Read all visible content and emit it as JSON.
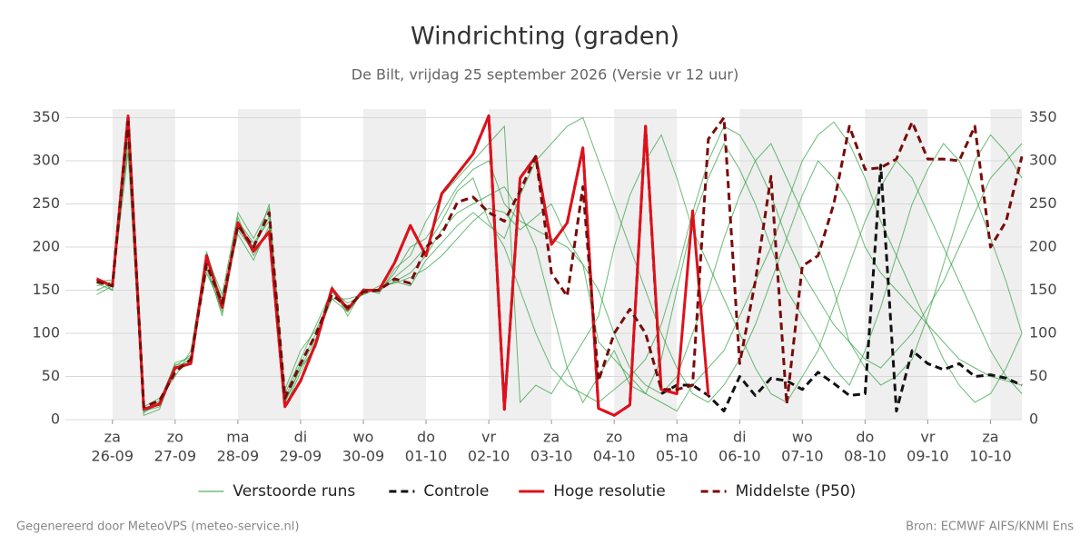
{
  "chart_data": {
    "type": "line",
    "title": "Windrichting (graden)",
    "subtitle": "De Bilt, vrijdag 25 september 2026 (Versie vr 12 uur)",
    "footer_left": "Gegenereerd door MeteoVPS (meteo-service.nl)",
    "footer_right": "Bron: ECMWF AIFS/KNMI Ens",
    "xlim": [
      -0.75,
      14.5
    ],
    "xticks": [
      {
        "value": 0,
        "label": [
          "za",
          "26-09"
        ]
      },
      {
        "value": 1,
        "label": [
          "zo",
          "27-09"
        ]
      },
      {
        "value": 2,
        "label": [
          "ma",
          "28-09"
        ]
      },
      {
        "value": 3,
        "label": [
          "di",
          "29-09"
        ]
      },
      {
        "value": 4,
        "label": [
          "wo",
          "30-09"
        ]
      },
      {
        "value": 5,
        "label": [
          "do",
          "01-10"
        ]
      },
      {
        "value": 6,
        "label": [
          "vr",
          "02-10"
        ]
      },
      {
        "value": 7,
        "label": [
          "za",
          "03-10"
        ]
      },
      {
        "value": 8,
        "label": [
          "zo",
          "04-10"
        ]
      },
      {
        "value": 9,
        "label": [
          "ma",
          "05-10"
        ]
      },
      {
        "value": 10,
        "label": [
          "di",
          "06-10"
        ]
      },
      {
        "value": 11,
        "label": [
          "wo",
          "07-10"
        ]
      },
      {
        "value": 12,
        "label": [
          "do",
          "08-10"
        ]
      },
      {
        "value": 13,
        "label": [
          "vr",
          "09-10"
        ]
      },
      {
        "value": 14,
        "label": [
          "za",
          "10-10"
        ]
      }
    ],
    "ylim": [
      0,
      360
    ],
    "yticks": [
      0,
      50,
      100,
      150,
      200,
      250,
      300,
      350
    ],
    "grid": true,
    "x": [
      -0.25,
      0,
      0.25,
      0.5,
      0.75,
      1,
      1.25,
      1.5,
      1.75,
      2,
      2.25,
      2.5,
      2.75,
      3,
      3.25,
      3.5,
      3.75,
      4,
      4.25,
      4.5,
      4.75,
      5,
      5.25,
      5.5,
      5.75,
      6,
      6.25,
      6.5,
      6.75,
      7,
      7.25,
      7.5,
      7.75,
      8,
      8.25,
      8.5,
      8.75,
      9,
      9.25,
      9.5,
      9.75,
      10,
      10.25,
      10.5,
      10.75,
      11,
      11.25,
      11.5,
      11.75,
      12,
      12.25,
      12.5,
      12.75,
      13,
      13.25,
      13.5,
      13.75,
      14,
      14.25,
      14.5
    ],
    "series": [
      {
        "name": "Verstoorde runs",
        "color": "#2e9e3e",
        "style": "solid",
        "members": [
          [
            155,
            160,
            330,
            10,
            15,
            62,
            75,
            175,
            125,
            230,
            205,
            230,
            20,
            60,
            95,
            140,
            125,
            150,
            148,
            170,
            200,
            210,
            240,
            270,
            290,
            300,
            250,
            230,
            220,
            210,
            200,
            180,
            150,
            100,
            60,
            40,
            30,
            50,
            100,
            150,
            210,
            260,
            300,
            320,
            280,
            240,
            200,
            150,
            90,
            60,
            40,
            50,
            70,
            120,
            180,
            240,
            300,
            330,
            310,
            280
          ],
          [
            150,
            158,
            320,
            8,
            20,
            58,
            68,
            185,
            140,
            220,
            195,
            250,
            30,
            70,
            110,
            150,
            135,
            145,
            152,
            160,
            170,
            190,
            220,
            240,
            250,
            260,
            270,
            240,
            200,
            130,
            60,
            20,
            50,
            80,
            40,
            30,
            70,
            150,
            230,
            280,
            320,
            290,
            250,
            200,
            150,
            120,
            90,
            60,
            40,
            80,
            130,
            190,
            250,
            290,
            320,
            300,
            260,
            210,
            160,
            100
          ],
          [
            165,
            150,
            340,
            12,
            18,
            66,
            72,
            170,
            130,
            235,
            190,
            220,
            15,
            55,
            90,
            155,
            120,
            152,
            146,
            175,
            190,
            230,
            260,
            280,
            300,
            320,
            340,
            20,
            40,
            30,
            60,
            90,
            120,
            200,
            260,
            300,
            330,
            280,
            220,
            180,
            140,
            100,
            60,
            30,
            20,
            50,
            80,
            130,
            180,
            230,
            270,
            300,
            280,
            240,
            200,
            160,
            120,
            80,
            50,
            30
          ],
          [
            160,
            162,
            350,
            15,
            25,
            50,
            80,
            190,
            145,
            240,
            210,
            245,
            35,
            80,
            105,
            140,
            140,
            145,
            155,
            158,
            165,
            175,
            190,
            210,
            230,
            245,
            240,
            220,
            235,
            250,
            210,
            180,
            90,
            70,
            50,
            30,
            20,
            10,
            40,
            60,
            80,
            120,
            160,
            200,
            250,
            300,
            330,
            345,
            320,
            280,
            230,
            190,
            150,
            110,
            70,
            40,
            20,
            30,
            60,
            100
          ],
          [
            145,
            155,
            310,
            5,
            12,
            60,
            70,
            180,
            120,
            225,
            200,
            235,
            25,
            65,
            100,
            148,
            128,
            150,
            150,
            165,
            180,
            200,
            230,
            265,
            280,
            230,
            200,
            150,
            100,
            60,
            40,
            30,
            20,
            35,
            50,
            70,
            110,
            170,
            240,
            300,
            340,
            330,
            300,
            260,
            210,
            170,
            140,
            110,
            90,
            70,
            60,
            80,
            100,
            130,
            160,
            200,
            240,
            280,
            300,
            320
          ],
          [
            158,
            150,
            335,
            10,
            22,
            64,
            65,
            195,
            135,
            215,
            185,
            225,
            20,
            60,
            85,
            150,
            125,
            148,
            150,
            160,
            155,
            185,
            205,
            225,
            240,
            225,
            210,
            260,
            300,
            320,
            340,
            350,
            300,
            250,
            200,
            150,
            100,
            60,
            30,
            20,
            40,
            70,
            110,
            160,
            210,
            260,
            300,
            280,
            250,
            200,
            170,
            150,
            130,
            110,
            90,
            70,
            60,
            50,
            45,
            40
          ]
        ]
      },
      {
        "name": "Controle",
        "color": "#111111",
        "style": "dashed",
        "values": [
          163,
          155,
          352,
          12,
          18,
          60,
          65,
          190,
          130,
          228,
          195,
          218,
          15,
          45,
          90,
          152,
          128,
          150,
          150,
          182,
          225,
          190,
          262,
          285,
          308,
          352,
          12,
          280,
          305,
          203,
          228,
          315,
          13,
          5,
          17,
          340,
          30,
          40,
          40,
          28,
          10,
          50,
          28,
          48,
          45,
          35,
          55,
          42,
          28,
          30,
          295,
          10,
          80,
          65,
          58,
          65,
          50,
          52,
          48,
          40
        ]
      },
      {
        "name": "Hoge resolutie",
        "color": "#e0101b",
        "style": "solid",
        "values": [
          163,
          155,
          352,
          12,
          18,
          60,
          65,
          190,
          130,
          228,
          195,
          218,
          15,
          45,
          90,
          152,
          128,
          150,
          150,
          182,
          225,
          190,
          262,
          285,
          308,
          352,
          12,
          280,
          305,
          203,
          228,
          315,
          13,
          5,
          17,
          340,
          35,
          30,
          242,
          28,
          null,
          null,
          null,
          null,
          null,
          null,
          null,
          null,
          null,
          null,
          null,
          null,
          null,
          null,
          null,
          null,
          null,
          null,
          null,
          null
        ]
      },
      {
        "name": "Middelste (P50)",
        "color": "#7a0a0a",
        "style": "dashed",
        "values": [
          160,
          155,
          345,
          15,
          22,
          55,
          70,
          180,
          135,
          225,
          200,
          240,
          25,
          65,
          100,
          145,
          130,
          148,
          150,
          163,
          158,
          200,
          215,
          252,
          258,
          240,
          230,
          265,
          305,
          170,
          143,
          270,
          45,
          100,
          128,
          100,
          35,
          35,
          40,
          325,
          350,
          65,
          160,
          282,
          18,
          178,
          190,
          250,
          340,
          290,
          292,
          302,
          345,
          302,
          302,
          300,
          340,
          200,
          230,
          305
        ]
      }
    ]
  }
}
